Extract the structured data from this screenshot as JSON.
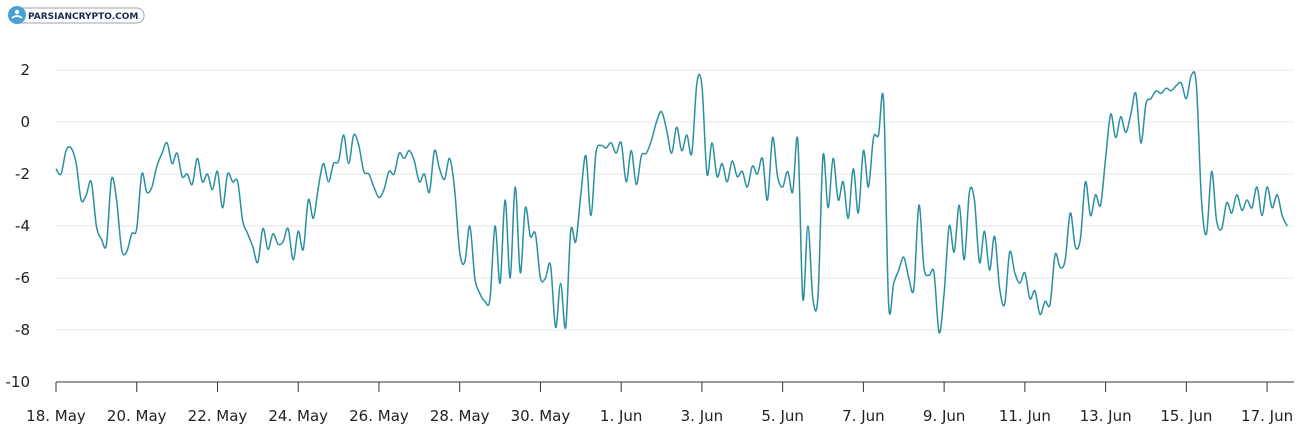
{
  "watermark": {
    "text": "PARSIANCRYPTO.COM"
  },
  "colors": {
    "line": "#2a8fa0",
    "grid": "#e6e6e6",
    "axis": "#333333"
  },
  "chart_data": {
    "type": "line",
    "ylim": [
      -10,
      2
    ],
    "yticks": [
      "2",
      "0",
      "-2",
      "-4",
      "-6",
      "-8",
      "-10"
    ],
    "yticks_values": [
      2,
      0,
      -2,
      -4,
      -6,
      -8,
      -10
    ],
    "xlim": [
      "2023-05-18",
      "2023-06-17T16:00"
    ],
    "xticks": [
      "18. May",
      "20. May",
      "22. May",
      "24. May",
      "26. May",
      "28. May",
      "30. May",
      "1. Jun",
      "3. Jun",
      "5. Jun",
      "7. Jun",
      "9. Jun",
      "11. Jun",
      "13. Jun",
      "15. Jun",
      "17. Jun"
    ],
    "xticks_dates": [
      "2023-05-18",
      "2023-05-20",
      "2023-05-22",
      "2023-05-24",
      "2023-05-26",
      "2023-05-28",
      "2023-05-30",
      "2023-06-01",
      "2023-06-03",
      "2023-06-05",
      "2023-06-07",
      "2023-06-09",
      "2023-06-11",
      "2023-06-13",
      "2023-06-15",
      "2023-06-17"
    ],
    "grid": true,
    "legend": "none",
    "series": [
      {
        "points": [
          [
            "2023-05-18T00:00",
            -1.8
          ],
          [
            "2023-05-18T03:00",
            -2.0
          ],
          [
            "2023-05-18T06:00",
            -1.1
          ],
          [
            "2023-05-18T09:00",
            -1.0
          ],
          [
            "2023-05-18T12:00",
            -1.6
          ],
          [
            "2023-05-18T15:00",
            -3.0
          ],
          [
            "2023-05-18T18:00",
            -2.8
          ],
          [
            "2023-05-18T21:00",
            -2.3
          ],
          [
            "2023-05-19T00:00",
            -4.0
          ],
          [
            "2023-05-19T03:00",
            -4.5
          ],
          [
            "2023-05-19T06:00",
            -4.7
          ],
          [
            "2023-05-19T09:00",
            -2.2
          ],
          [
            "2023-05-19T12:00",
            -3.0
          ],
          [
            "2023-05-19T15:00",
            -4.9
          ],
          [
            "2023-05-19T18:00",
            -5.0
          ],
          [
            "2023-05-19T21:00",
            -4.3
          ],
          [
            "2023-05-20T00:00",
            -4.1
          ],
          [
            "2023-05-20T03:00",
            -2.0
          ],
          [
            "2023-05-20T06:00",
            -2.7
          ],
          [
            "2023-05-20T09:00",
            -2.5
          ],
          [
            "2023-05-20T12:00",
            -1.7
          ],
          [
            "2023-05-20T15:00",
            -1.2
          ],
          [
            "2023-05-20T18:00",
            -0.8
          ],
          [
            "2023-05-20T21:00",
            -1.6
          ],
          [
            "2023-05-21T00:00",
            -1.2
          ],
          [
            "2023-05-21T03:00",
            -2.1
          ],
          [
            "2023-05-21T06:00",
            -2.0
          ],
          [
            "2023-05-21T09:00",
            -2.4
          ],
          [
            "2023-05-21T12:00",
            -1.4
          ],
          [
            "2023-05-21T15:00",
            -2.3
          ],
          [
            "2023-05-21T18:00",
            -2.0
          ],
          [
            "2023-05-21T21:00",
            -2.6
          ],
          [
            "2023-05-22T00:00",
            -1.9
          ],
          [
            "2023-05-22T03:00",
            -3.3
          ],
          [
            "2023-05-22T06:00",
            -2.0
          ],
          [
            "2023-05-22T09:00",
            -2.3
          ],
          [
            "2023-05-22T12:00",
            -2.3
          ],
          [
            "2023-05-22T15:00",
            -3.8
          ],
          [
            "2023-05-22T18:00",
            -4.3
          ],
          [
            "2023-05-22T21:00",
            -4.8
          ],
          [
            "2023-05-23T00:00",
            -5.4
          ],
          [
            "2023-05-23T03:00",
            -4.1
          ],
          [
            "2023-05-23T06:00",
            -4.9
          ],
          [
            "2023-05-23T09:00",
            -4.3
          ],
          [
            "2023-05-23T12:00",
            -4.7
          ],
          [
            "2023-05-23T15:00",
            -4.6
          ],
          [
            "2023-05-23T18:00",
            -4.1
          ],
          [
            "2023-05-23T21:00",
            -5.3
          ],
          [
            "2023-05-24T00:00",
            -4.2
          ],
          [
            "2023-05-24T03:00",
            -4.9
          ],
          [
            "2023-05-24T06:00",
            -3.0
          ],
          [
            "2023-05-24T09:00",
            -3.7
          ],
          [
            "2023-05-24T12:00",
            -2.5
          ],
          [
            "2023-05-24T15:00",
            -1.6
          ],
          [
            "2023-05-24T18:00",
            -2.3
          ],
          [
            "2023-05-24T21:00",
            -1.6
          ],
          [
            "2023-05-25T00:00",
            -1.5
          ],
          [
            "2023-05-25T03:00",
            -0.5
          ],
          [
            "2023-05-25T06:00",
            -1.6
          ],
          [
            "2023-05-25T09:00",
            -0.5
          ],
          [
            "2023-05-25T12:00",
            -0.9
          ],
          [
            "2023-05-25T15:00",
            -1.9
          ],
          [
            "2023-05-25T18:00",
            -2.0
          ],
          [
            "2023-05-25T21:00",
            -2.5
          ],
          [
            "2023-05-26T00:00",
            -2.9
          ],
          [
            "2023-05-26T03:00",
            -2.6
          ],
          [
            "2023-05-26T06:00",
            -1.9
          ],
          [
            "2023-05-26T09:00",
            -2.0
          ],
          [
            "2023-05-26T12:00",
            -1.2
          ],
          [
            "2023-05-26T15:00",
            -1.4
          ],
          [
            "2023-05-26T18:00",
            -1.1
          ],
          [
            "2023-05-26T21:00",
            -1.5
          ],
          [
            "2023-05-27T00:00",
            -2.3
          ],
          [
            "2023-05-27T03:00",
            -2.0
          ],
          [
            "2023-05-27T06:00",
            -2.7
          ],
          [
            "2023-05-27T09:00",
            -1.1
          ],
          [
            "2023-05-27T12:00",
            -1.8
          ],
          [
            "2023-05-27T15:00",
            -2.2
          ],
          [
            "2023-05-27T18:00",
            -1.4
          ],
          [
            "2023-05-27T21:00",
            -2.6
          ],
          [
            "2023-05-28T00:00",
            -5.0
          ],
          [
            "2023-05-28T03:00",
            -5.4
          ],
          [
            "2023-05-28T06:00",
            -4.0
          ],
          [
            "2023-05-28T09:00",
            -6.0
          ],
          [
            "2023-05-28T12:00",
            -6.6
          ],
          [
            "2023-05-28T15:00",
            -6.9
          ],
          [
            "2023-05-28T18:00",
            -6.8
          ],
          [
            "2023-05-28T21:00",
            -4.0
          ],
          [
            "2023-05-29T00:00",
            -6.2
          ],
          [
            "2023-05-29T03:00",
            -3.0
          ],
          [
            "2023-05-29T06:00",
            -6.0
          ],
          [
            "2023-05-29T09:00",
            -2.5
          ],
          [
            "2023-05-29T12:00",
            -5.8
          ],
          [
            "2023-05-29T15:00",
            -3.3
          ],
          [
            "2023-05-29T18:00",
            -4.4
          ],
          [
            "2023-05-29T21:00",
            -4.3
          ],
          [
            "2023-05-30T00:00",
            -6.0
          ],
          [
            "2023-05-30T03:00",
            -6.0
          ],
          [
            "2023-05-30T06:00",
            -5.5
          ],
          [
            "2023-05-30T09:00",
            -7.9
          ],
          [
            "2023-05-30T12:00",
            -6.2
          ],
          [
            "2023-05-30T15:00",
            -7.9
          ],
          [
            "2023-05-30T18:00",
            -4.2
          ],
          [
            "2023-05-30T21:00",
            -4.6
          ],
          [
            "2023-05-31T00:00",
            -2.8
          ],
          [
            "2023-05-31T03:00",
            -1.3
          ],
          [
            "2023-05-31T06:00",
            -3.6
          ],
          [
            "2023-05-31T09:00",
            -1.2
          ],
          [
            "2023-05-31T12:00",
            -0.9
          ],
          [
            "2023-05-31T15:00",
            -1.0
          ],
          [
            "2023-05-31T18:00",
            -0.8
          ],
          [
            "2023-05-31T21:00",
            -1.2
          ],
          [
            "2023-06-01T00:00",
            -0.8
          ],
          [
            "2023-06-01T03:00",
            -2.3
          ],
          [
            "2023-06-01T06:00",
            -1.1
          ],
          [
            "2023-06-01T09:00",
            -2.4
          ],
          [
            "2023-06-01T12:00",
            -1.3
          ],
          [
            "2023-06-01T15:00",
            -1.2
          ],
          [
            "2023-06-01T18:00",
            -0.7
          ],
          [
            "2023-06-01T21:00",
            0.0
          ],
          [
            "2023-06-02T00:00",
            0.4
          ],
          [
            "2023-06-02T03:00",
            -0.3
          ],
          [
            "2023-06-02T06:00",
            -1.2
          ],
          [
            "2023-06-02T09:00",
            -0.2
          ],
          [
            "2023-06-02T12:00",
            -1.1
          ],
          [
            "2023-06-02T15:00",
            -0.5
          ],
          [
            "2023-06-02T18:00",
            -1.2
          ],
          [
            "2023-06-02T21:00",
            1.5
          ],
          [
            "2023-06-03T00:00",
            1.4
          ],
          [
            "2023-06-03T03:00",
            -2.0
          ],
          [
            "2023-06-03T06:00",
            -0.8
          ],
          [
            "2023-06-03T09:00",
            -2.1
          ],
          [
            "2023-06-03T12:00",
            -1.6
          ],
          [
            "2023-06-03T15:00",
            -2.3
          ],
          [
            "2023-06-03T18:00",
            -1.5
          ],
          [
            "2023-06-03T21:00",
            -2.1
          ],
          [
            "2023-06-04T00:00",
            -1.9
          ],
          [
            "2023-06-04T03:00",
            -2.5
          ],
          [
            "2023-06-04T06:00",
            -1.7
          ],
          [
            "2023-06-04T09:00",
            -2.0
          ],
          [
            "2023-06-04T12:00",
            -1.4
          ],
          [
            "2023-06-04T15:00",
            -3.0
          ],
          [
            "2023-06-04T18:00",
            -0.6
          ],
          [
            "2023-06-04T21:00",
            -2.1
          ],
          [
            "2023-06-05T00:00",
            -2.5
          ],
          [
            "2023-06-05T03:00",
            -1.9
          ],
          [
            "2023-06-05T06:00",
            -2.7
          ],
          [
            "2023-06-05T09:00",
            -0.7
          ],
          [
            "2023-06-05T12:00",
            -6.8
          ],
          [
            "2023-06-05T15:00",
            -4.0
          ],
          [
            "2023-06-05T18:00",
            -6.8
          ],
          [
            "2023-06-05T21:00",
            -6.7
          ],
          [
            "2023-06-06T00:00",
            -1.3
          ],
          [
            "2023-06-06T03:00",
            -3.3
          ],
          [
            "2023-06-06T06:00",
            -1.4
          ],
          [
            "2023-06-06T09:00",
            -3.0
          ],
          [
            "2023-06-06T12:00",
            -2.3
          ],
          [
            "2023-06-06T15:00",
            -3.7
          ],
          [
            "2023-06-06T18:00",
            -1.8
          ],
          [
            "2023-06-06T21:00",
            -3.5
          ],
          [
            "2023-06-07T00:00",
            -1.1
          ],
          [
            "2023-06-07T03:00",
            -2.5
          ],
          [
            "2023-06-07T06:00",
            -0.6
          ],
          [
            "2023-06-07T09:00",
            -0.5
          ],
          [
            "2023-06-07T12:00",
            0.8
          ],
          [
            "2023-06-07T15:00",
            -7.0
          ],
          [
            "2023-06-07T18:00",
            -6.2
          ],
          [
            "2023-06-07T21:00",
            -5.7
          ],
          [
            "2023-06-08T00:00",
            -5.2
          ],
          [
            "2023-06-08T03:00",
            -6.0
          ],
          [
            "2023-06-08T06:00",
            -6.4
          ],
          [
            "2023-06-08T09:00",
            -3.2
          ],
          [
            "2023-06-08T12:00",
            -5.6
          ],
          [
            "2023-06-08T15:00",
            -5.9
          ],
          [
            "2023-06-08T18:00",
            -5.8
          ],
          [
            "2023-06-08T21:00",
            -8.1
          ],
          [
            "2023-06-09T00:00",
            -6.6
          ],
          [
            "2023-06-09T03:00",
            -4.0
          ],
          [
            "2023-06-09T06:00",
            -5.0
          ],
          [
            "2023-06-09T09:00",
            -3.2
          ],
          [
            "2023-06-09T12:00",
            -5.3
          ],
          [
            "2023-06-09T15:00",
            -2.7
          ],
          [
            "2023-06-09T18:00",
            -3.0
          ],
          [
            "2023-06-09T21:00",
            -5.4
          ],
          [
            "2023-06-10T00:00",
            -4.2
          ],
          [
            "2023-06-10T03:00",
            -5.7
          ],
          [
            "2023-06-10T06:00",
            -4.4
          ],
          [
            "2023-06-10T09:00",
            -6.4
          ],
          [
            "2023-06-10T12:00",
            -7.0
          ],
          [
            "2023-06-10T15:00",
            -5.0
          ],
          [
            "2023-06-10T18:00",
            -5.8
          ],
          [
            "2023-06-10T21:00",
            -6.2
          ],
          [
            "2023-06-11T00:00",
            -5.8
          ],
          [
            "2023-06-11T03:00",
            -6.8
          ],
          [
            "2023-06-11T06:00",
            -6.5
          ],
          [
            "2023-06-11T09:00",
            -7.4
          ],
          [
            "2023-06-11T12:00",
            -6.9
          ],
          [
            "2023-06-11T15:00",
            -7.0
          ],
          [
            "2023-06-11T18:00",
            -5.1
          ],
          [
            "2023-06-11T21:00",
            -5.6
          ],
          [
            "2023-06-12T00:00",
            -5.3
          ],
          [
            "2023-06-12T03:00",
            -3.5
          ],
          [
            "2023-06-12T06:00",
            -4.8
          ],
          [
            "2023-06-12T09:00",
            -4.5
          ],
          [
            "2023-06-12T12:00",
            -2.3
          ],
          [
            "2023-06-12T15:00",
            -3.6
          ],
          [
            "2023-06-12T18:00",
            -2.8
          ],
          [
            "2023-06-12T21:00",
            -3.2
          ],
          [
            "2023-06-13T00:00",
            -1.4
          ],
          [
            "2023-06-13T03:00",
            0.3
          ],
          [
            "2023-06-13T06:00",
            -0.6
          ],
          [
            "2023-06-13T09:00",
            0.2
          ],
          [
            "2023-06-13T12:00",
            -0.4
          ],
          [
            "2023-06-13T15:00",
            0.3
          ],
          [
            "2023-06-13T18:00",
            1.1
          ],
          [
            "2023-06-13T21:00",
            -0.8
          ],
          [
            "2023-06-14T00:00",
            0.7
          ],
          [
            "2023-06-14T03:00",
            0.9
          ],
          [
            "2023-06-14T06:00",
            1.2
          ],
          [
            "2023-06-14T09:00",
            1.1
          ],
          [
            "2023-06-14T12:00",
            1.3
          ],
          [
            "2023-06-14T15:00",
            1.2
          ],
          [
            "2023-06-14T18:00",
            1.4
          ],
          [
            "2023-06-14T21:00",
            1.5
          ],
          [
            "2023-06-15T00:00",
            0.9
          ],
          [
            "2023-06-15T03:00",
            1.8
          ],
          [
            "2023-06-15T06:00",
            1.4
          ],
          [
            "2023-06-15T09:00",
            -3.0
          ],
          [
            "2023-06-15T12:00",
            -4.3
          ],
          [
            "2023-06-15T15:00",
            -1.9
          ],
          [
            "2023-06-15T18:00",
            -3.8
          ],
          [
            "2023-06-15T21:00",
            -4.1
          ],
          [
            "2023-06-16T00:00",
            -3.1
          ],
          [
            "2023-06-16T03:00",
            -3.5
          ],
          [
            "2023-06-16T06:00",
            -2.8
          ],
          [
            "2023-06-16T09:00",
            -3.4
          ],
          [
            "2023-06-16T12:00",
            -3.0
          ],
          [
            "2023-06-16T15:00",
            -3.3
          ],
          [
            "2023-06-16T18:00",
            -2.5
          ],
          [
            "2023-06-16T21:00",
            -3.6
          ],
          [
            "2023-06-17T00:00",
            -2.5
          ],
          [
            "2023-06-17T03:00",
            -3.3
          ],
          [
            "2023-06-17T06:00",
            -2.8
          ],
          [
            "2023-06-17T09:00",
            -3.6
          ],
          [
            "2023-06-17T12:00",
            -4.0
          ]
        ]
      }
    ]
  }
}
